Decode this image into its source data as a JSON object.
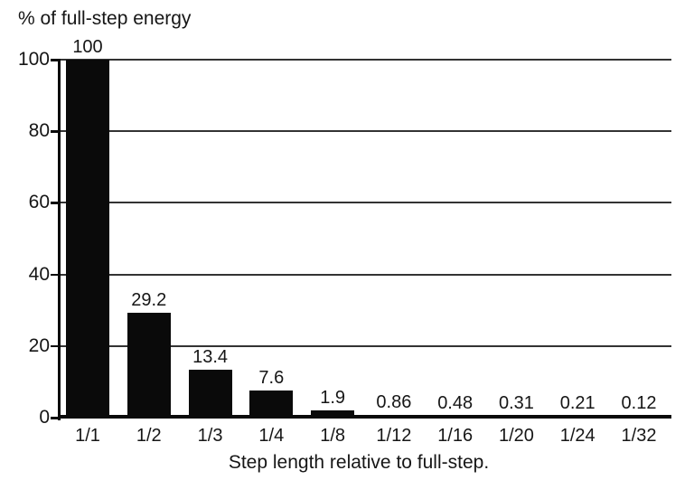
{
  "chart_data": {
    "type": "bar",
    "title": "% of full-step energy",
    "xlabel": "Step length relative to full-step.",
    "ylabel": "",
    "categories": [
      "1/1",
      "1/2",
      "1/3",
      "1/4",
      "1/8",
      "1/12",
      "1/16",
      "1/20",
      "1/24",
      "1/32"
    ],
    "values": [
      100,
      29.2,
      13.4,
      7.6,
      1.9,
      0.86,
      0.48,
      0.31,
      0.21,
      0.12
    ],
    "value_labels": [
      "100",
      "29.2",
      "13.4",
      "7.6",
      "1.9",
      "0.86",
      "0.48",
      "0.31",
      "0.21",
      "0.12"
    ],
    "ylim": [
      0,
      100
    ],
    "yticks": [
      0,
      20,
      40,
      60,
      80,
      100
    ],
    "grid": true,
    "legend": "none",
    "bar_color": "#0a0a0a",
    "grid_color": "#333333",
    "axis_color": "#0a0a0a",
    "text_color": "#161616",
    "background_color": "#ffffff"
  }
}
